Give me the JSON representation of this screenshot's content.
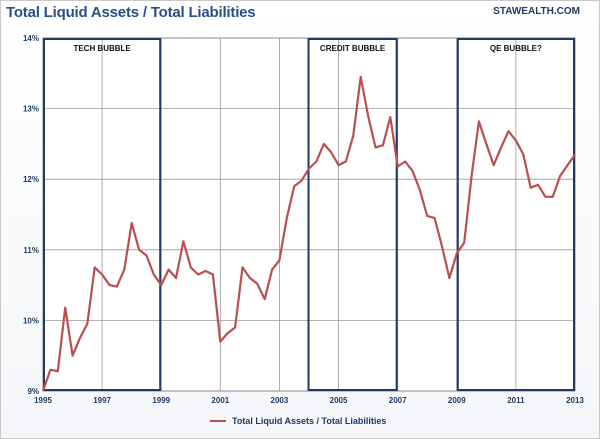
{
  "title": "Total Liquid Assets / Total Liabilities",
  "source": "STAWEALTH.COM",
  "legend_label": "Total Liquid Assets / Total Liabilities",
  "chart_data": {
    "type": "line",
    "title": "Total Liquid Assets / Total Liabilities",
    "xlabel": "",
    "ylabel": "",
    "xlim": [
      1995,
      2013
    ],
    "ylim": [
      9,
      14
    ],
    "x_ticks": [
      "1995",
      "1997",
      "1999",
      "2001",
      "2003",
      "2005",
      "2007",
      "2009",
      "2011",
      "2013"
    ],
    "y_ticks": [
      "9%",
      "10%",
      "11%",
      "12%",
      "13%",
      "14%"
    ],
    "grid": true,
    "legend_position": "bottom",
    "series": [
      {
        "name": "Total Liquid Assets / Total Liabilities",
        "color": "#b8504f",
        "x": [
          1995.0,
          1995.25,
          1995.5,
          1995.75,
          1996.0,
          1996.25,
          1996.5,
          1996.75,
          1997.0,
          1997.25,
          1997.5,
          1997.75,
          1998.0,
          1998.25,
          1998.5,
          1998.75,
          1999.0,
          1999.25,
          1999.5,
          1999.75,
          2000.0,
          2000.25,
          2000.5,
          2000.75,
          2001.0,
          2001.25,
          2001.5,
          2001.75,
          2002.0,
          2002.25,
          2002.5,
          2002.75,
          2003.0,
          2003.25,
          2003.5,
          2003.75,
          2004.0,
          2004.25,
          2004.5,
          2004.75,
          2005.0,
          2005.25,
          2005.5,
          2005.75,
          2006.0,
          2006.25,
          2006.5,
          2006.75,
          2007.0,
          2007.25,
          2007.5,
          2007.75,
          2008.0,
          2008.25,
          2008.5,
          2008.75,
          2009.0,
          2009.25,
          2009.5,
          2009.75,
          2010.0,
          2010.25,
          2010.5,
          2010.75,
          2011.0,
          2011.25,
          2011.5,
          2011.75,
          2012.0,
          2012.25,
          2012.5,
          2012.75,
          2013.0
        ],
        "values": [
          9.0,
          9.3,
          9.28,
          10.18,
          9.5,
          9.75,
          9.95,
          10.75,
          10.65,
          10.5,
          10.48,
          10.72,
          11.38,
          11.0,
          10.92,
          10.65,
          10.5,
          10.72,
          10.6,
          11.12,
          10.75,
          10.65,
          10.7,
          10.65,
          9.7,
          9.82,
          9.9,
          10.75,
          10.6,
          10.52,
          10.3,
          10.72,
          10.85,
          11.45,
          11.9,
          11.98,
          12.15,
          12.25,
          12.5,
          12.38,
          12.2,
          12.25,
          12.62,
          13.45,
          12.9,
          12.45,
          12.48,
          12.88,
          12.18,
          12.25,
          12.12,
          11.85,
          11.48,
          11.45,
          11.05,
          10.6,
          10.95,
          11.1,
          12.05,
          12.82,
          12.5,
          12.2,
          12.45,
          12.68,
          12.55,
          12.35,
          11.88,
          11.92,
          11.75,
          11.75,
          12.05,
          12.2,
          12.35
        ]
      }
    ],
    "annotations": [
      {
        "label": "TECH BUBBLE",
        "x_start": 1995.0,
        "x_end": 1999.0
      },
      {
        "label": "CREDIT BUBBLE",
        "x_start": 2003.95,
        "x_end": 2007.0
      },
      {
        "label": "QE BUBBLE?",
        "x_start": 2009.0,
        "x_end": 2013.0
      }
    ]
  }
}
